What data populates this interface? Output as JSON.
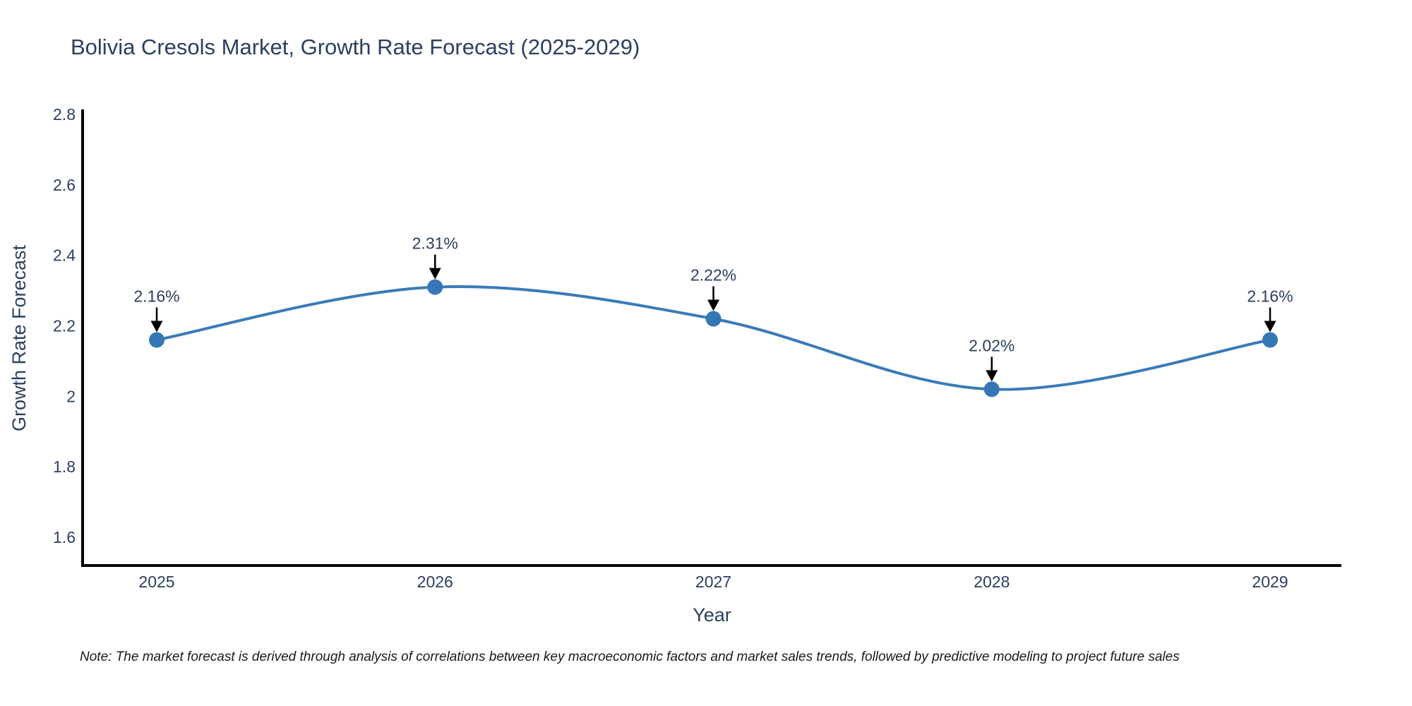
{
  "page": {
    "background": "#ffffff"
  },
  "chart_data": {
    "type": "line",
    "title": "Bolivia Cresols Market, Growth Rate Forecast (2025-2029)",
    "xlabel": "Year",
    "ylabel": "Growth Rate Forecast",
    "x": [
      2025,
      2026,
      2027,
      2028,
      2029
    ],
    "xtick_labels": [
      "2025",
      "2026",
      "2027",
      "2028",
      "2029"
    ],
    "series": [
      {
        "name": "Growth Rate Forecast",
        "values": [
          2.16,
          2.31,
          2.22,
          2.02,
          2.16
        ],
        "point_labels": [
          "2.16%",
          "2.31%",
          "2.22%",
          "2.02%",
          "2.16%"
        ]
      }
    ],
    "yticks": [
      2.8,
      2.6,
      2.4,
      2.2,
      2,
      1.8,
      1.6
    ],
    "ytick_labels": [
      "2.8",
      "2.6",
      "2.4",
      "2.2",
      "2",
      "1.8",
      "1.6"
    ],
    "ylim": [
      1.52,
      2.81
    ],
    "grid": false,
    "line_shape": "spline",
    "legend": "none",
    "colors": {
      "line": "#3b7ab8",
      "marker": "#3577b4",
      "arrow": "#000000",
      "text": "#2a3f5f",
      "axis": "#000000"
    }
  },
  "note": {
    "text": "Note: The market forecast is derived through analysis of correlations between key macroeconomic factors and market sales trends, followed by predictive modeling to project future sales"
  }
}
